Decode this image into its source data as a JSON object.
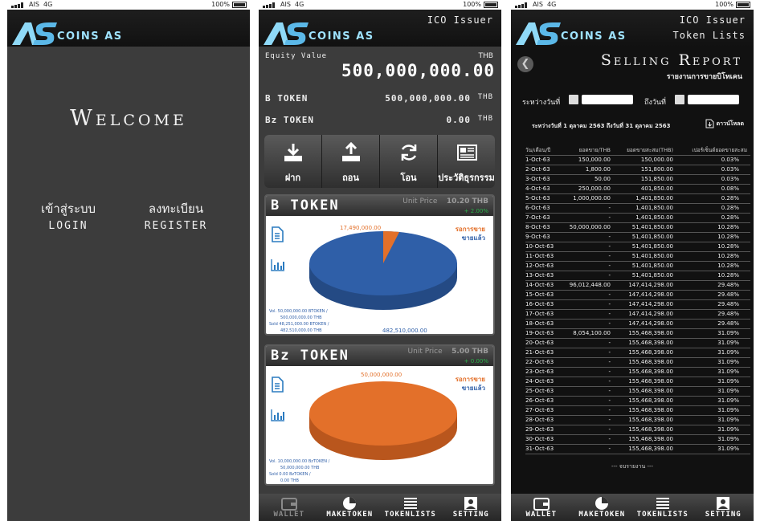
{
  "status": {
    "carrier": "AIS",
    "network": "4G",
    "battery": "100%"
  },
  "brand": {
    "name": "COINS AS",
    "logo_letters": "AS"
  },
  "colors": {
    "bg_dark": "#3c3c3c",
    "accent_blue": "#2f5fa8",
    "accent_orange": "#e3702a",
    "logo_cyan": "#9fe3ff",
    "positive_green": "#2bb34a"
  },
  "welcome": {
    "title": "Welcome",
    "login_th": "เข้าสู่ระบบ",
    "login_en": "LOGIN",
    "register_th": "ลงทะเบียน",
    "register_en": "REGISTER"
  },
  "wallet": {
    "header": "ICO Issuer",
    "equity_label": "Equity Value",
    "equity_unit": "THB",
    "equity_value": "500,000,000.00",
    "balances": [
      {
        "label": "B TOKEN",
        "value": "500,000,000.00",
        "unit": "THB"
      },
      {
        "label": "Bz TOKEN",
        "value": "0.00",
        "unit": "THB"
      }
    ],
    "actions": [
      {
        "label": "ฝาก",
        "icon": "download-icon"
      },
      {
        "label": "ถอน",
        "icon": "upload-icon"
      },
      {
        "label": "โอน",
        "icon": "refresh-icon"
      },
      {
        "label": "ประวัติธุรกรรม",
        "icon": "newspaper-icon"
      }
    ],
    "tokens": [
      {
        "name": "B TOKEN",
        "unit_price_label": "Unit Price",
        "unit_price": "10.20 THB",
        "change": "+ 2.00%",
        "legend_sale": "รอการขาย",
        "legend_sold": "ขายแล้ว",
        "pending_label": "17,490,000.00",
        "sold_label": "482,510,000.00",
        "pending_fraction": 0.035,
        "info": [
          "Vol.  50,000,000.00 BTOKEN /",
          "500,000,000.00 THB",
          "Sold  48,251,000.00 BTOKEN /",
          "482,510,000.00 THB"
        ]
      },
      {
        "name": "Bz TOKEN",
        "unit_price_label": "Unit Price",
        "unit_price": "5.00 THB",
        "change": "+ 0.00%",
        "legend_sale": "รอการขาย",
        "legend_sold": "ขายแล้ว",
        "pending_label": "50,000,000.00",
        "sold_label": "",
        "pending_fraction": 1.0,
        "info": [
          "Vol.  10,000,000.00 BzTOKEN /",
          "50,000,000.00 THB",
          "Sold  0.00 BzTOKEN /",
          "0.00 THB"
        ]
      }
    ]
  },
  "tabs": [
    "WALLET",
    "MAKETOKEN",
    "TOKENLISTS",
    "SETTING"
  ],
  "report": {
    "header_line1": "ICO Issuer",
    "header_line2": "Token Lists",
    "title": "Selling Report",
    "subtitle": "รายงานการขายบิโทเคน",
    "from_label": "ระหว่างวันที่",
    "to_label": "ถึงวันที่",
    "range_text": "ระหว่างวันที่ 1 ตุลาคม 2563 ถึงวันที่ 31 ตุลาคม 2563",
    "download_label": "ดาวน์โหลด",
    "columns": [
      "วัน/เดือน/ปี",
      "ยอดขาย/THB",
      "ยอดขายสะสม(THB)",
      "เปอร์เซ็นต์ยอดขายสะสม"
    ],
    "rows": [
      [
        "1-Oct-63",
        "150,000.00",
        "150,000.00",
        "0.03%"
      ],
      [
        "2-Oct-63",
        "1,800.00",
        "151,800.00",
        "0.03%"
      ],
      [
        "3-Oct-63",
        "50.00",
        "151,850.00",
        "0.03%"
      ],
      [
        "4-Oct-63",
        "250,000.00",
        "401,850.00",
        "0.08%"
      ],
      [
        "5-Oct-63",
        "1,000,000.00",
        "1,401,850.00",
        "0.28%"
      ],
      [
        "6-Oct-63",
        "-",
        "1,401,850.00",
        "0.28%"
      ],
      [
        "7-Oct-63",
        "-",
        "1,401,850.00",
        "0.28%"
      ],
      [
        "8-Oct-63",
        "50,000,000.00",
        "51,401,850.00",
        "10.28%"
      ],
      [
        "9-Oct-63",
        "-",
        "51,401,850.00",
        "10.28%"
      ],
      [
        "10-Oct-63",
        "-",
        "51,401,850.00",
        "10.28%"
      ],
      [
        "11-Oct-63",
        "-",
        "51,401,850.00",
        "10.28%"
      ],
      [
        "12-Oct-63",
        "-",
        "51,401,850.00",
        "10.28%"
      ],
      [
        "13-Oct-63",
        "-",
        "51,401,850.00",
        "10.28%"
      ],
      [
        "14-Oct-63",
        "96,012,448.00",
        "147,414,298.00",
        "29.48%"
      ],
      [
        "15-Oct-63",
        "-",
        "147,414,298.00",
        "29.48%"
      ],
      [
        "16-Oct-63",
        "-",
        "147,414,298.00",
        "29.48%"
      ],
      [
        "17-Oct-63",
        "-",
        "147,414,298.00",
        "29.48%"
      ],
      [
        "18-Oct-63",
        "-",
        "147,414,298.00",
        "29.48%"
      ],
      [
        "19-Oct-63",
        "8,054,100.00",
        "155,468,398.00",
        "31.09%"
      ],
      [
        "20-Oct-63",
        "-",
        "155,468,398.00",
        "31.09%"
      ],
      [
        "21-Oct-63",
        "-",
        "155,468,398.00",
        "31.09%"
      ],
      [
        "22-Oct-63",
        "-",
        "155,468,398.00",
        "31.09%"
      ],
      [
        "23-Oct-63",
        "-",
        "155,468,398.00",
        "31.09%"
      ],
      [
        "24-Oct-63",
        "-",
        "155,468,398.00",
        "31.09%"
      ],
      [
        "25-Oct-63",
        "-",
        "155,468,398.00",
        "31.09%"
      ],
      [
        "26-Oct-63",
        "-",
        "155,468,398.00",
        "31.09%"
      ],
      [
        "27-Oct-63",
        "-",
        "155,468,398.00",
        "31.09%"
      ],
      [
        "28-Oct-63",
        "-",
        "155,468,398.00",
        "31.09%"
      ],
      [
        "29-Oct-63",
        "-",
        "155,468,398.00",
        "31.09%"
      ],
      [
        "30-Oct-63",
        "-",
        "155,468,398.00",
        "31.09%"
      ],
      [
        "31-Oct-63",
        "-",
        "155,468,398.00",
        "31.09%"
      ]
    ],
    "end_text": "--- จบรายงาน ---"
  }
}
